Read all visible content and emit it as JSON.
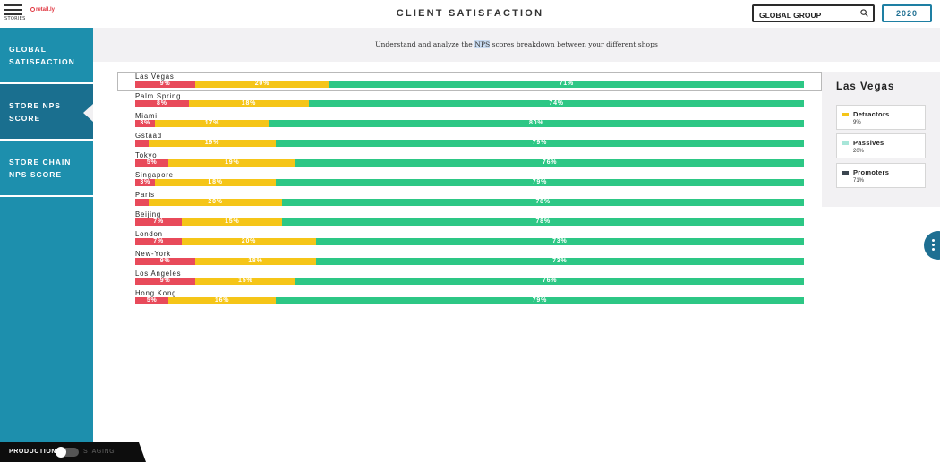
{
  "header": {
    "menu_label": "STORIES",
    "logo_text": "retail.ly",
    "title": "CLIENT SATISFACTION",
    "search_value": "GLOBAL GROUP",
    "year": "2020"
  },
  "sidebar": {
    "items": [
      {
        "label": "GLOBAL SATISFACTION"
      },
      {
        "label": "STORE NPS SCORE"
      },
      {
        "label": "STORE CHAIN NPS SCORE"
      }
    ],
    "active_index": 1,
    "env": {
      "production": "PRODUCTION",
      "staging": "STAGING"
    }
  },
  "main": {
    "subtitle_before": "Understand and analyze the ",
    "subtitle_highlight": "NPS",
    "subtitle_after": " scores breakdown between your different shops"
  },
  "chart_data": {
    "type": "bar",
    "orientation": "horizontal-stacked",
    "categories": [
      "Las Vegas",
      "Palm Spring",
      "Miami",
      "Gstaad",
      "Tokyo",
      "Singapore",
      "Paris",
      "Beijing",
      "London",
      "New-York",
      "Los Angeles",
      "Hong Kong"
    ],
    "series": [
      {
        "name": "Detractors",
        "color": "#e84a5a",
        "values": [
          9,
          8,
          3,
          2,
          5,
          3,
          2,
          7,
          7,
          9,
          9,
          5
        ],
        "labels": [
          "9%",
          "8%",
          "3%",
          "",
          "5%",
          "3%",
          "",
          "7%",
          "7%",
          "9%",
          "9%",
          "5%"
        ]
      },
      {
        "name": "Passives",
        "color": "#f5c518",
        "values": [
          20,
          18,
          17,
          19,
          19,
          18,
          20,
          15,
          20,
          18,
          15,
          16
        ],
        "labels": [
          "20%",
          "18%",
          "17%",
          "19%",
          "19%",
          "18%",
          "20%",
          "15%",
          "20%",
          "18%",
          "15%",
          "16%"
        ]
      },
      {
        "name": "Promoters",
        "color": "#2dc785",
        "values": [
          71,
          74,
          80,
          79,
          76,
          79,
          78,
          78,
          73,
          73,
          76,
          79
        ],
        "labels": [
          "71%",
          "74%",
          "80%",
          "79%",
          "76%",
          "79%",
          "78%",
          "78%",
          "73%",
          "73%",
          "76%",
          "79%"
        ]
      }
    ],
    "selected": "Las Vegas"
  },
  "legend": {
    "title": "Las Vegas",
    "items": [
      {
        "name": "Detractors",
        "value": "9%",
        "color": "#f5c518"
      },
      {
        "name": "Passives",
        "value": "20%",
        "color": "#a8e6d9"
      },
      {
        "name": "Promoters",
        "value": "71%",
        "color": "#3c4650"
      }
    ]
  }
}
